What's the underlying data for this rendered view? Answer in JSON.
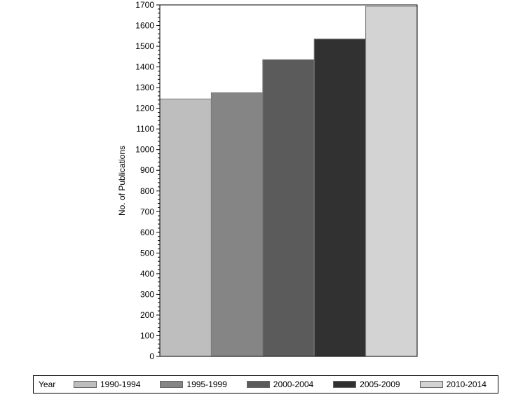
{
  "chart_data": {
    "type": "bar",
    "title": "",
    "xlabel": "",
    "ylabel": "No. of Publications",
    "ylim": [
      0,
      1700
    ],
    "yticks": [
      0,
      100,
      200,
      300,
      400,
      500,
      600,
      700,
      800,
      900,
      1000,
      1100,
      1200,
      1300,
      1400,
      1500,
      1600,
      1700
    ],
    "categories": [
      "1990-1994",
      "1995-1999",
      "2000-2004",
      "2005-2009",
      "2010-2014"
    ],
    "values": [
      1245,
      1275,
      1435,
      1535,
      1693
    ],
    "colors": [
      "#bebebe",
      "#858585",
      "#5b5b5b",
      "#313131",
      "#d3d3d3"
    ],
    "legend": {
      "title": "Year",
      "placement": "bottom",
      "items": [
        "1990-1994",
        "1995-1999",
        "2000-2004",
        "2005-2009",
        "2010-2014"
      ]
    },
    "grid": false
  }
}
